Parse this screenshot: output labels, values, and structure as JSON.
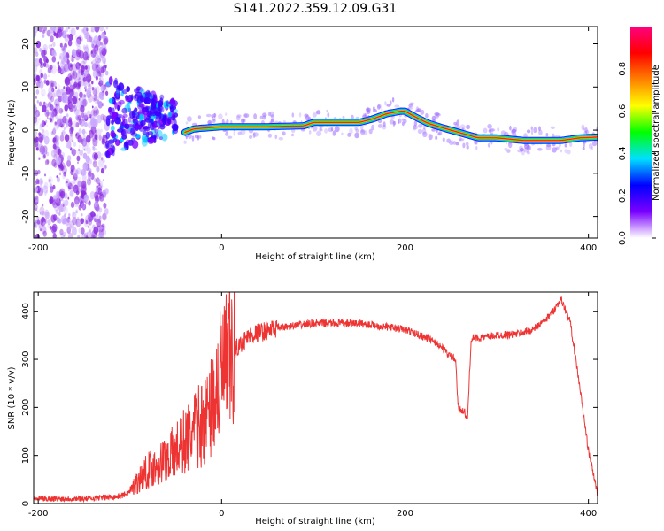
{
  "title": "S141.2022.359.12.09.G31",
  "chart_data": [
    {
      "type": "heatmap",
      "xlabel": "Height of straight line (km)",
      "ylabel": "Frequency (Hz)",
      "xlim": [
        -205,
        410
      ],
      "ylim": [
        -25,
        24
      ],
      "xticks": [
        -200,
        0,
        200,
        400
      ],
      "yticks": [
        -20,
        -10,
        0,
        10,
        20
      ],
      "colorbar": {
        "label": "Normalized spectral amplitude",
        "range": [
          0,
          1
        ],
        "ticks": [
          "0.0",
          "0.2",
          "0.4",
          "0.6",
          "0.8"
        ],
        "colors": [
          "#ffffff",
          "#7a00ff",
          "#0000ff",
          "#00e0ff",
          "#00ff00",
          "#ffff00",
          "#ff8000",
          "#ff0000",
          "#ff0080"
        ]
      },
      "ridge": {
        "x": [
          -40,
          -30,
          0,
          50,
          90,
          100,
          150,
          165,
          180,
          195,
          200,
          210,
          225,
          240,
          260,
          280,
          300,
          330,
          370,
          390,
          410
        ],
        "y": [
          -0.5,
          0.3,
          0.8,
          0.8,
          1.0,
          1.8,
          1.8,
          2.6,
          3.8,
          4.4,
          4.4,
          3.2,
          1.6,
          0.6,
          -0.6,
          -1.8,
          -1.8,
          -2.4,
          -2.4,
          -1.8,
          -1.6
        ]
      },
      "noise_region_x": [
        -205,
        -125
      ],
      "scatter_region_x": [
        -125,
        -50
      ]
    },
    {
      "type": "line",
      "xlabel": "Height of straight line (km)",
      "ylabel": "SNR (10 * v/v)",
      "xlim": [
        -205,
        410
      ],
      "ylim": [
        0,
        440
      ],
      "xticks": [
        -200,
        0,
        200,
        400
      ],
      "yticks": [
        0,
        100,
        200,
        300,
        400
      ],
      "color": "#ee3333",
      "series_envelope": {
        "x": [
          -205,
          -150,
          -110,
          -100,
          -90,
          -80,
          -70,
          -50,
          -30,
          -15,
          0,
          10,
          15,
          20,
          25,
          30,
          40,
          60,
          80,
          100,
          150,
          200,
          230,
          240,
          250,
          255,
          258,
          262,
          265,
          268,
          272,
          275,
          285,
          300,
          320,
          340,
          355,
          365,
          370,
          380,
          390,
          400,
          410
        ],
        "y": [
          10,
          10,
          15,
          25,
          50,
          70,
          80,
          110,
          150,
          180,
          270,
          300,
          320,
          330,
          340,
          350,
          355,
          365,
          370,
          375,
          375,
          362,
          340,
          325,
          305,
          300,
          200,
          195,
          190,
          170,
          340,
          345,
          345,
          350,
          352,
          362,
          385,
          410,
          425,
          380,
          250,
          110,
          20
        ]
      }
    }
  ]
}
